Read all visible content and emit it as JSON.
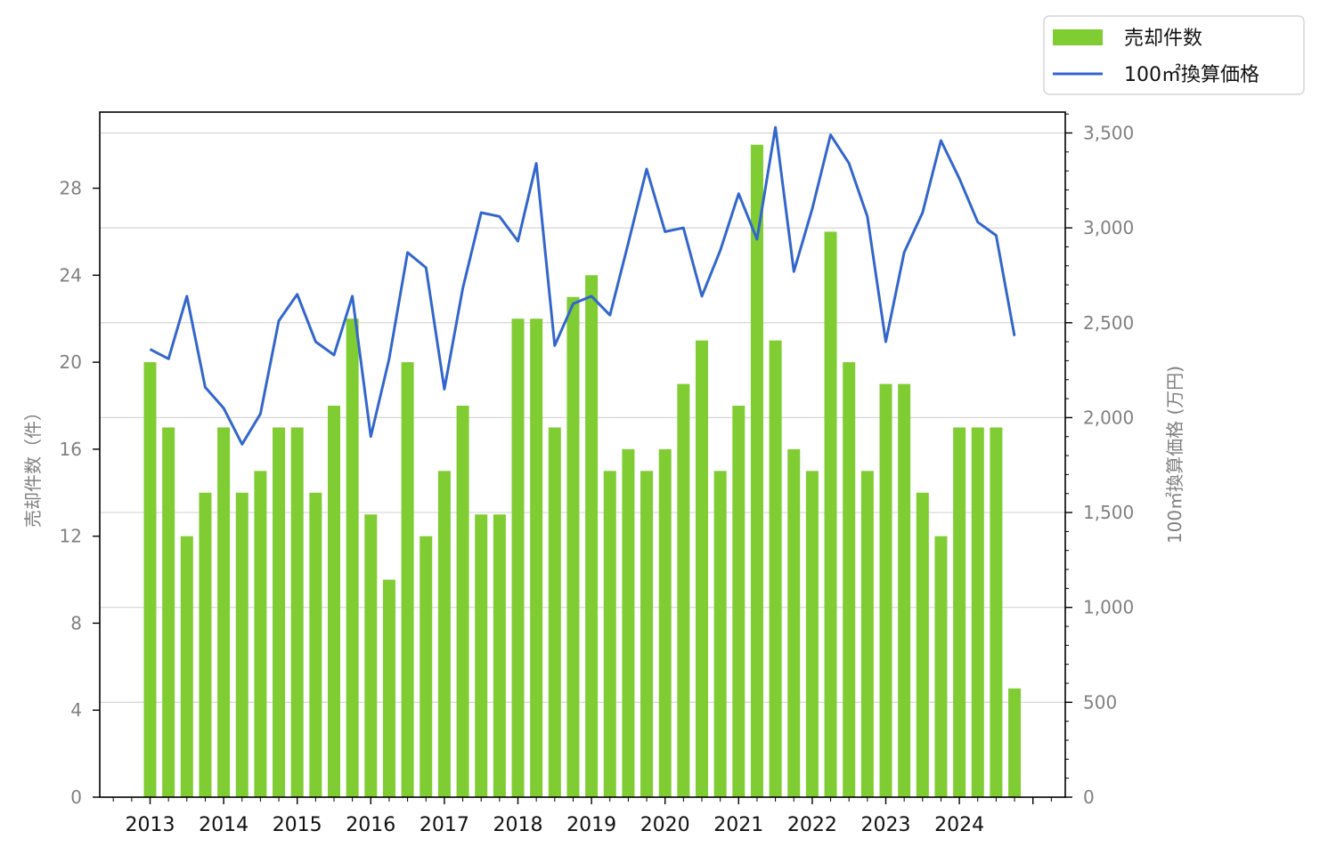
{
  "chart_data": {
    "type": "bar",
    "x_tick_labels": [
      "2013",
      "2014",
      "2015",
      "2016",
      "2017",
      "2018",
      "2019",
      "2020",
      "2021",
      "2022",
      "2023",
      "2024"
    ],
    "left_axis": {
      "label": "売却件数（件）",
      "ticks": [
        0,
        4,
        8,
        12,
        16,
        20,
        24,
        28
      ],
      "ylim": [
        0,
        31.5
      ]
    },
    "right_axis": {
      "label": "100㎡換算価格 (万円)",
      "ticks": [
        "0",
        "500",
        "1,000",
        "1,500",
        "2,000",
        "2,500",
        "3,000",
        "3,500"
      ],
      "ylim": [
        0,
        3610
      ]
    },
    "grid": "horizontal on right-axis ticks",
    "legend_position": "top-right (outside plot)",
    "series": [
      {
        "name": "売却件数",
        "type": "bar",
        "axis": "left",
        "color": "#7fcc33",
        "values": [
          20,
          17,
          12,
          14,
          17,
          14,
          15,
          17,
          17,
          14,
          18,
          22,
          13,
          10,
          20,
          12,
          15,
          18,
          13,
          13,
          22,
          22,
          17,
          23,
          24,
          15,
          16,
          15,
          16,
          19,
          21,
          15,
          18,
          30,
          21,
          16,
          15,
          26,
          20,
          15,
          19,
          19,
          14,
          12,
          17,
          17,
          17,
          5
        ]
      },
      {
        "name": "100㎡換算価格",
        "type": "line",
        "axis": "right",
        "color": "#3366cc",
        "values": [
          2360,
          2310,
          2640,
          2160,
          2050,
          1860,
          2020,
          2510,
          2650,
          2400,
          2330,
          2640,
          1900,
          2310,
          2870,
          2790,
          2150,
          2680,
          3080,
          3060,
          2930,
          3340,
          2380,
          2600,
          2640,
          2540,
          2920,
          3310,
          2980,
          3000,
          2640,
          2880,
          3180,
          2940,
          3530,
          2770,
          3100,
          3490,
          3340,
          3060,
          2400,
          2870,
          3080,
          3460,
          3260,
          3030,
          2960,
          2430
        ]
      }
    ]
  }
}
